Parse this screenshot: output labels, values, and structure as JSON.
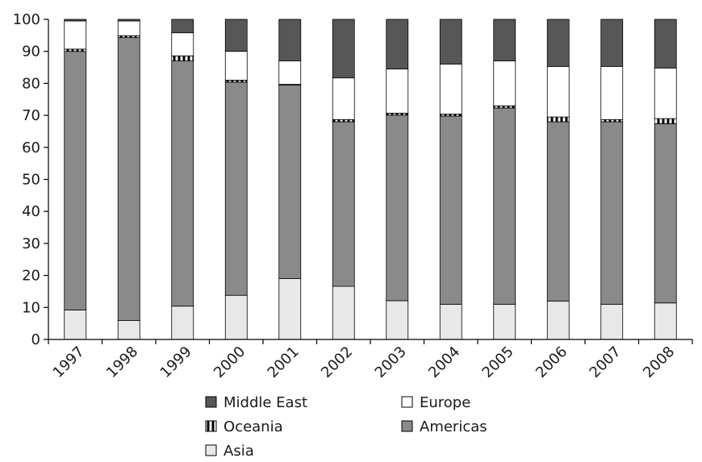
{
  "chart_data": {
    "type": "bar",
    "stacked": true,
    "title": "",
    "xlabel": "",
    "ylabel": "",
    "ylim": [
      0,
      100
    ],
    "yticks": [
      0,
      10,
      20,
      30,
      40,
      50,
      60,
      70,
      80,
      90,
      100
    ],
    "grid": false,
    "legend_position": "bottom",
    "categories": [
      "1997",
      "1998",
      "1999",
      "2000",
      "2001",
      "2002",
      "2003",
      "2004",
      "2005",
      "2006",
      "2007",
      "2008"
    ],
    "series": [
      {
        "name": "Asia",
        "color": "#e8e8e8",
        "pattern": "solid",
        "values": [
          9.2,
          5.9,
          10.4,
          13.8,
          19.0,
          16.6,
          12.1,
          11.0,
          11.0,
          12.0,
          11.0,
          11.4
        ]
      },
      {
        "name": "Americas",
        "color": "#8a8a8a",
        "pattern": "solid",
        "values": [
          80.8,
          88.4,
          76.6,
          66.6,
          60.5,
          51.4,
          58.0,
          58.8,
          61.3,
          56.0,
          57.0,
          56.0
        ]
      },
      {
        "name": "Oceania",
        "color": "#000000",
        "pattern": "checkered",
        "values": [
          0.7,
          0.6,
          1.6,
          0.6,
          0.2,
          0.7,
          0.6,
          0.6,
          0.7,
          1.5,
          0.7,
          1.6
        ]
      },
      {
        "name": "Europe",
        "color": "#ffffff",
        "pattern": "solid",
        "values": [
          8.8,
          4.6,
          7.2,
          9.0,
          7.3,
          13.0,
          13.8,
          15.6,
          14.0,
          15.8,
          16.6,
          15.8
        ]
      },
      {
        "name": "Middle East",
        "color": "#575757",
        "pattern": "solid",
        "values": [
          0.5,
          0.5,
          4.2,
          10.0,
          13.0,
          18.3,
          15.5,
          14.0,
          13.0,
          14.7,
          14.7,
          15.2
        ]
      }
    ],
    "legend_entries": [
      {
        "name": "Middle East",
        "series": "Middle East"
      },
      {
        "name": "Europe",
        "series": "Europe"
      },
      {
        "name": "Oceania",
        "series": "Oceania"
      },
      {
        "name": "Americas",
        "series": "Americas"
      },
      {
        "name": "Asia",
        "series": "Asia"
      }
    ]
  }
}
